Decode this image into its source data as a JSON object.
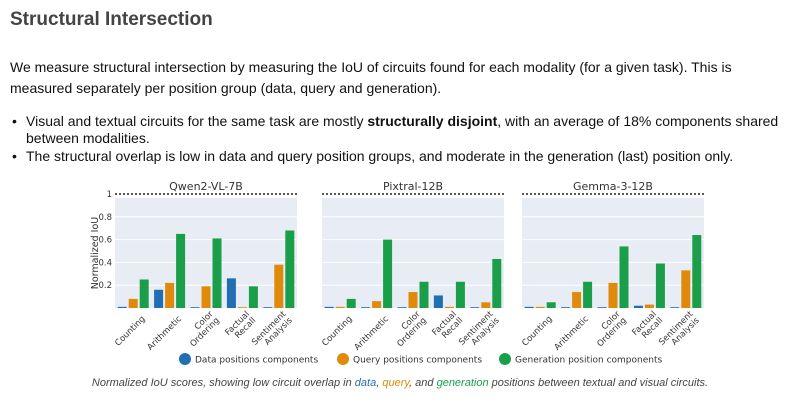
{
  "heading": "Structural Intersection",
  "intro": "We measure structural intersection by measuring the IoU of circuits found for each modality (for a given task). This is measured separately per position group (data, query and generation).",
  "bullets": {
    "b1_before": "Visual and textual circuits for the same task are mostly ",
    "b1_bold": "structurally disjoint",
    "b1_after": ", with an average of 18% components shared between modalities.",
    "b2": "The structural overlap is low in data and query position groups, and moderate in the generation (last) position only."
  },
  "caption": {
    "pre": "Normalized IoU scores, showing low circuit overlap in ",
    "data": "data",
    "sep1": ", ",
    "query": "query",
    "sep2": ", and ",
    "generation": "generation",
    "post": " positions between textual and visual circuits."
  },
  "colors": {
    "data": "#1f6fb2",
    "query": "#e08a0b",
    "generation": "#1a9e4a",
    "panel_bg": "#e8ecf5"
  },
  "chart_data": {
    "type": "bar",
    "ylabel": "Normalized IoU",
    "ylim": [
      0,
      1
    ],
    "yticks": [
      0.2,
      0.4,
      0.6,
      0.8,
      1
    ],
    "ytick_labels": [
      "0.2",
      "0.4",
      "0.6",
      "0.8",
      "1"
    ],
    "reference_line": 1,
    "categories": [
      [
        "Counting"
      ],
      [
        "Arithmetic"
      ],
      [
        "Color",
        "Ordering"
      ],
      [
        "Factual",
        "Recall"
      ],
      [
        "Sentiment",
        "Analysis"
      ]
    ],
    "legend_position": "bottom",
    "series_names": [
      "Data positions components",
      "Query positions components",
      "Generation position components"
    ],
    "panels": [
      {
        "title": "Qwen2-VL-7B",
        "series": [
          {
            "name": "Data positions components",
            "values": [
              0.01,
              0.16,
              0.0,
              0.26,
              0.0
            ]
          },
          {
            "name": "Query positions components",
            "values": [
              0.08,
              0.22,
              0.19,
              0.0,
              0.38
            ]
          },
          {
            "name": "Generation position components",
            "values": [
              0.25,
              0.65,
              0.61,
              0.19,
              0.68
            ]
          }
        ]
      },
      {
        "title": "Pixtral-12B",
        "series": [
          {
            "name": "Data positions components",
            "values": [
              0.01,
              0.0,
              0.0,
              0.11,
              0.0
            ]
          },
          {
            "name": "Query positions components",
            "values": [
              0.01,
              0.06,
              0.14,
              0.01,
              0.05
            ]
          },
          {
            "name": "Generation position components",
            "values": [
              0.08,
              0.6,
              0.23,
              0.23,
              0.43
            ]
          }
        ]
      },
      {
        "title": "Gemma-3-12B",
        "series": [
          {
            "name": "Data positions components",
            "values": [
              0.01,
              0.0,
              0.0,
              0.02,
              0.0
            ]
          },
          {
            "name": "Query positions components",
            "values": [
              0.01,
              0.14,
              0.22,
              0.03,
              0.33
            ]
          },
          {
            "name": "Generation position components",
            "values": [
              0.05,
              0.23,
              0.54,
              0.39,
              0.64
            ]
          }
        ]
      }
    ]
  }
}
